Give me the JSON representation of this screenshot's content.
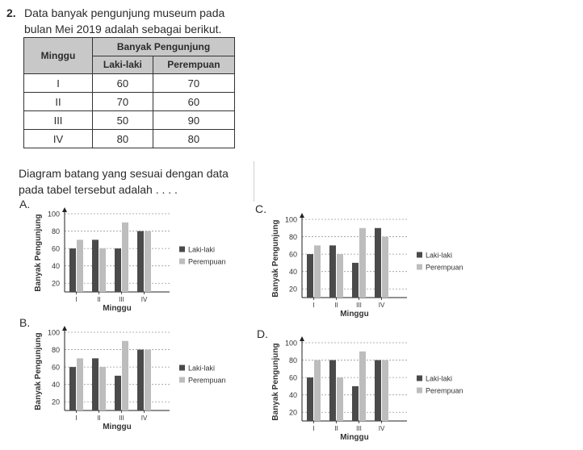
{
  "question": {
    "number": "2.",
    "line1": "Data banyak pengunjung museum pada",
    "line2": "bulan Mei 2019 adalah sebagai berikut.",
    "prompt_line1": "Diagram batang yang sesuai dengan data",
    "prompt_line2": "pada tabel tersebut adalah . . . ."
  },
  "table": {
    "col_minggu": "Minggu",
    "col_group": "Banyak Pengunjung",
    "col_laki": "Laki-laki",
    "col_perempuan": "Perempuan",
    "rows": [
      {
        "minggu": "I",
        "laki": "60",
        "perempuan": "70"
      },
      {
        "minggu": "II",
        "laki": "70",
        "perempuan": "60"
      },
      {
        "minggu": "III",
        "laki": "50",
        "perempuan": "90"
      },
      {
        "minggu": "IV",
        "laki": "80",
        "perempuan": "80"
      }
    ]
  },
  "colors": {
    "laki": "#4a4a4a",
    "perempuan": "#bdbdbd"
  },
  "chart_data": [
    {
      "option": "A.",
      "type": "bar",
      "categories": [
        "I",
        "II",
        "III",
        "IV"
      ],
      "series": [
        {
          "name": "Laki-laki",
          "values": [
            60,
            70,
            60,
            80
          ]
        },
        {
          "name": "Perempuan",
          "values": [
            70,
            60,
            90,
            80
          ]
        }
      ],
      "xlabel": "Minggu",
      "ylabel": "Banyak Pengunjung",
      "yticks": [
        20,
        40,
        60,
        80,
        100
      ],
      "ylim": [
        10,
        100
      ],
      "grid": true,
      "legend": "right"
    },
    {
      "option": "B.",
      "type": "bar",
      "categories": [
        "I",
        "II",
        "III",
        "IV"
      ],
      "series": [
        {
          "name": "Laki-laki",
          "values": [
            60,
            70,
            50,
            80
          ]
        },
        {
          "name": "Perempuan",
          "values": [
            70,
            60,
            90,
            80
          ]
        }
      ],
      "xlabel": "Minggu",
      "ylabel": "Banyak Pengunjung",
      "yticks": [
        20,
        40,
        60,
        80,
        100
      ],
      "ylim": [
        10,
        100
      ],
      "grid": true,
      "legend": "right"
    },
    {
      "option": "C.",
      "type": "bar",
      "categories": [
        "I",
        "II",
        "III",
        "IV"
      ],
      "series": [
        {
          "name": "Laki-laki",
          "values": [
            60,
            70,
            50,
            90
          ]
        },
        {
          "name": "Perempuan",
          "values": [
            70,
            60,
            90,
            80
          ]
        }
      ],
      "xlabel": "Minggu",
      "ylabel": "Banyak Pengunjung",
      "yticks": [
        20,
        40,
        60,
        80,
        100
      ],
      "ylim": [
        10,
        100
      ],
      "grid": true,
      "legend": "right"
    },
    {
      "option": "D.",
      "type": "bar",
      "categories": [
        "I",
        "II",
        "III",
        "IV"
      ],
      "series": [
        {
          "name": "Laki-laki",
          "values": [
            60,
            80,
            50,
            80
          ]
        },
        {
          "name": "Perempuan",
          "values": [
            80,
            60,
            90,
            80
          ]
        }
      ],
      "xlabel": "Minggu",
      "ylabel": "Banyak Pengunjung",
      "yticks": [
        20,
        40,
        60,
        80,
        100
      ],
      "ylim": [
        10,
        100
      ],
      "grid": true,
      "legend": "right"
    }
  ]
}
